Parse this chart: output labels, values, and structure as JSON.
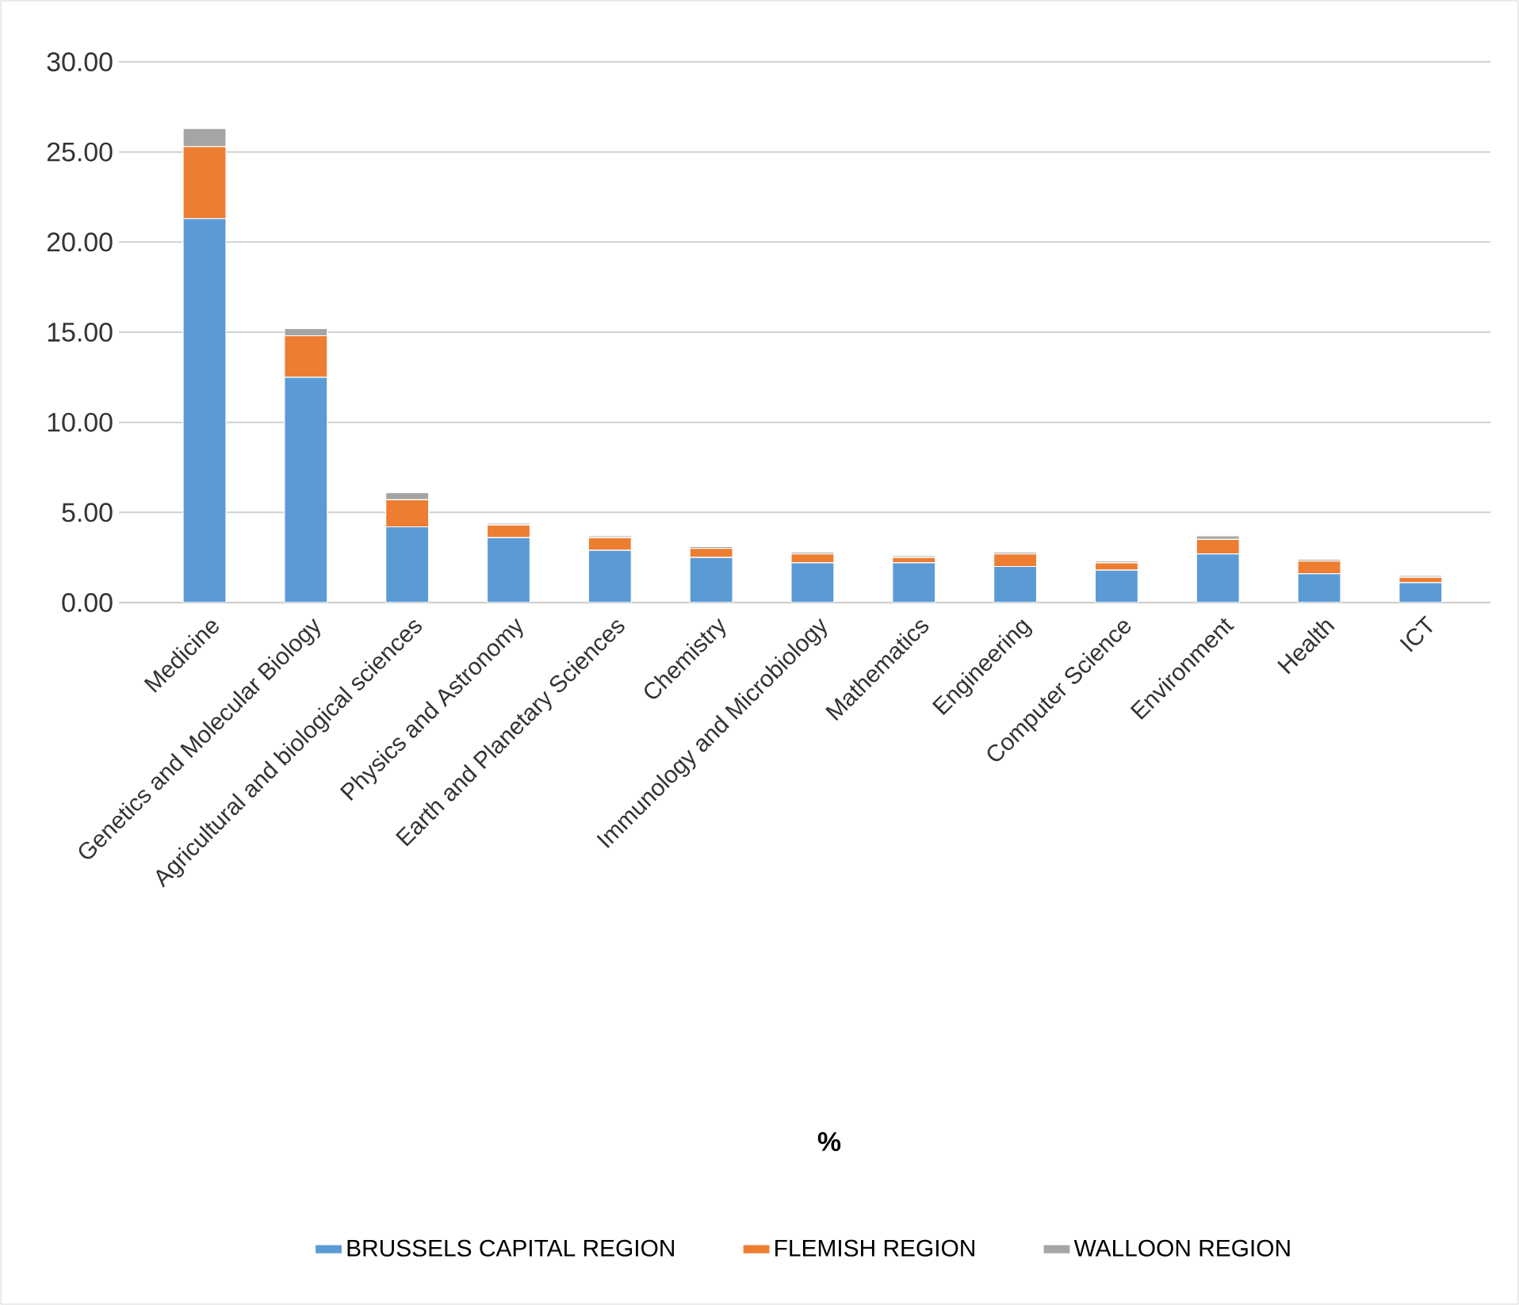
{
  "chart_data": {
    "type": "bar",
    "stacked": true,
    "annotations": [
      "%"
    ],
    "categories": [
      "Medicine",
      "Genetics and Molecular Biology",
      "Agricultural and biological sciences",
      "Physics and Astronomy",
      "Earth and Planetary Sciences",
      "Chemistry",
      "Immunology and Microbiology",
      "Mathematics",
      "Engineering",
      "Computer Science",
      "Environment",
      "Health",
      "ICT"
    ],
    "series": [
      {
        "name": "BRUSSELS CAPITAL REGION",
        "color": "#5b9bd5",
        "values": [
          21.3,
          12.5,
          4.2,
          3.6,
          2.9,
          2.5,
          2.2,
          2.2,
          2.0,
          1.8,
          2.7,
          1.6,
          1.1
        ]
      },
      {
        "name": "FLEMISH REGION",
        "color": "#ed7d31",
        "values": [
          4.0,
          2.3,
          1.5,
          0.7,
          0.7,
          0.5,
          0.5,
          0.3,
          0.7,
          0.4,
          0.8,
          0.7,
          0.3
        ]
      },
      {
        "name": "WALLOON REGION",
        "color": "#a5a5a5",
        "values": [
          1.0,
          0.4,
          0.4,
          0.1,
          0.1,
          0.1,
          0.1,
          0.1,
          0.1,
          0.1,
          0.2,
          0.1,
          0.1
        ]
      }
    ],
    "ylim": [
      0,
      30
    ],
    "yticks": [
      {
        "value": 0,
        "label": "0.00"
      },
      {
        "value": 5,
        "label": "5.00"
      },
      {
        "value": 10,
        "label": "10.00"
      },
      {
        "value": 15,
        "label": "15.00"
      },
      {
        "value": 20,
        "label": "20.00"
      },
      {
        "value": 25,
        "label": "25.00"
      },
      {
        "value": 30,
        "label": "30.00"
      }
    ],
    "grid": "y",
    "legend": "bottom"
  }
}
